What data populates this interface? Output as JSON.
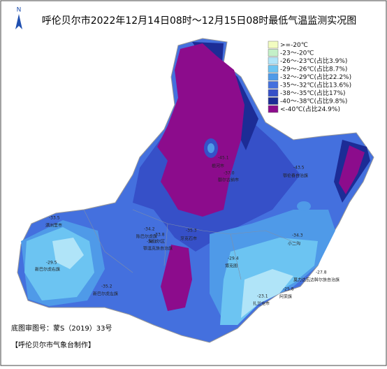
{
  "title": "呼伦贝尔市2022年12月14日08时～12月15日08时最低气温监测实况图",
  "north": "N",
  "legend": [
    {
      "label": ">=-20℃",
      "color": "#f2fcc0"
    },
    {
      "label": "-23～-20℃",
      "color": "#c4f0c8"
    },
    {
      "label": "-26～-23℃(占比3.9%)",
      "color": "#b0e4f8"
    },
    {
      "label": "-29～-26℃(占比8.7%)",
      "color": "#6cc4f2"
    },
    {
      "label": "-32～-29℃(占比22.2%)",
      "color": "#4f9ae8"
    },
    {
      "label": "-35～-32℃(占比13.6%)",
      "color": "#4470de"
    },
    {
      "label": "-38～-35℃(占比17%)",
      "color": "#3650c8"
    },
    {
      "label": "-40～-38℃(占比9.8%)",
      "color": "#1c2c96"
    },
    {
      "label": "<-40℃(占比24.9%)",
      "color": "#8c0c8c"
    }
  ],
  "stations": [
    {
      "name": "根河市",
      "value": "-45.1"
    },
    {
      "name": "额尔古纳市",
      "value": "-37.0"
    },
    {
      "name": "鄂伦春自治旗",
      "value": "-43.5"
    },
    {
      "name": "满洲里市",
      "value": "-33.5"
    },
    {
      "name": "陈巴尔虎旗",
      "value": "-34.2"
    },
    {
      "name": "海拉尔区",
      "value": "-33.8"
    },
    {
      "name": "牙克石市",
      "value": "-35.3"
    },
    {
      "name": "鄂温克族自治旗",
      "value": "-36.0"
    },
    {
      "name": "新巴尔虎右旗",
      "value": "-29.5"
    },
    {
      "name": "新巴尔虎左旗",
      "value": "-35.2"
    },
    {
      "name": "博克图",
      "value": "-29.4"
    },
    {
      "name": "阿荣旗",
      "value": "-25.8"
    },
    {
      "name": "扎兰屯市",
      "value": "-23.1"
    },
    {
      "name": "莫力达瓦达斡尔族自治旗",
      "value": "-27.8"
    },
    {
      "name": "小二沟",
      "value": "-34.3"
    }
  ],
  "footer": {
    "approval": "底图审图号：蒙S（2019）33号",
    "maker": "【呼伦贝尔市气象台制作】"
  }
}
